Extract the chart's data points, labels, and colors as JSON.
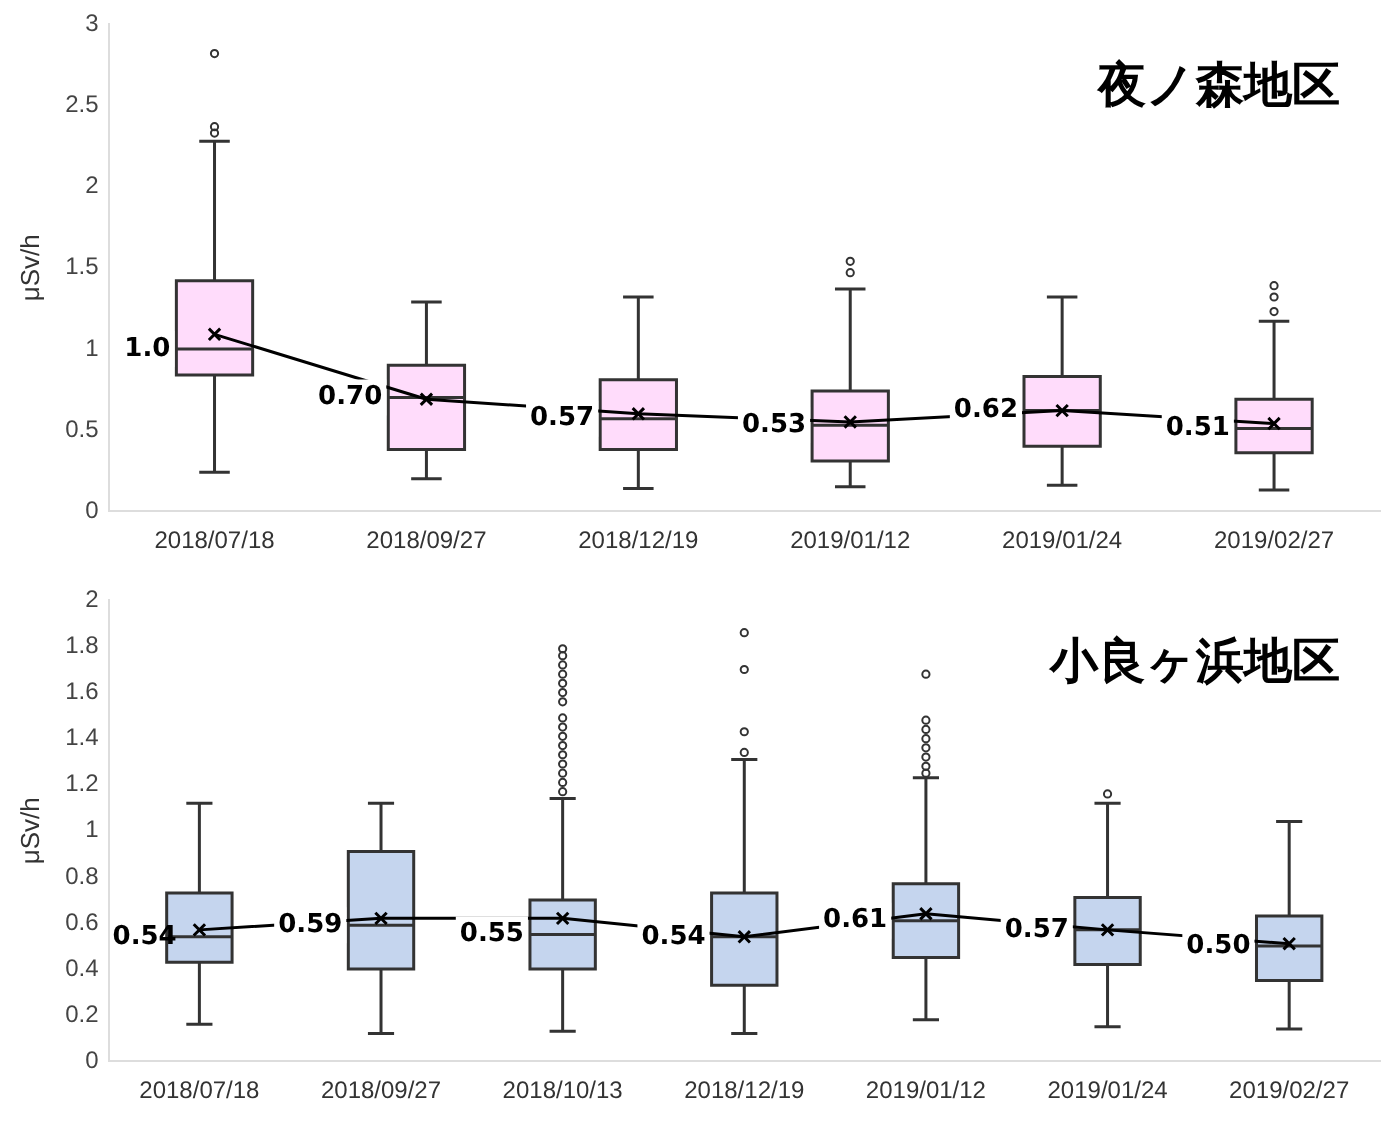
{
  "chart_data": [
    {
      "type": "box",
      "title": "夜ノ森地区",
      "ylabel": "μSv/h",
      "categories": [
        "2018/07/18",
        "2018/09/27",
        "2018/12/19",
        "2019/01/12",
        "2019/01/24",
        "2019/02/27"
      ],
      "ylim": [
        0,
        3
      ],
      "yticks": [
        0,
        0.5,
        1,
        1.5,
        2,
        2.5,
        3
      ],
      "grid": false,
      "legend": false,
      "marker": "cross",
      "series": [
        {
          "color": "#ffdcfb",
          "boxes": [
            {
              "low": 0.24,
              "q1": 0.84,
              "median": 1.0,
              "q3": 1.42,
              "high": 2.28,
              "outliers": [
                2.82,
                2.37,
                2.33
              ]
            },
            {
              "low": 0.2,
              "q1": 0.38,
              "median": 0.7,
              "q3": 0.9,
              "high": 1.29
            },
            {
              "low": 0.14,
              "q1": 0.38,
              "median": 0.57,
              "q3": 0.81,
              "high": 1.32
            },
            {
              "low": 0.15,
              "q1": 0.31,
              "median": 0.53,
              "q3": 0.74,
              "high": 1.37,
              "outliers": [
                1.54,
                1.47
              ]
            },
            {
              "low": 0.16,
              "q1": 0.4,
              "median": 0.62,
              "q3": 0.83,
              "high": 1.32
            },
            {
              "low": 0.13,
              "q1": 0.36,
              "median": 0.51,
              "q3": 0.69,
              "high": 1.17,
              "outliers": [
                1.39,
                1.32,
                1.23
              ]
            }
          ]
        },
        {
          "type": "line",
          "color": "#000000",
          "values": [
            1.09,
            0.69,
            0.6,
            0.55,
            0.62,
            0.54
          ]
        }
      ],
      "annotations": [
        {
          "text": "1.0",
          "x": "2018/07/18",
          "y": 1.0
        },
        {
          "text": "0.70",
          "x": "2018/09/27",
          "y": 0.7
        },
        {
          "text": "0.57",
          "x": "2018/12/19",
          "y": 0.57
        },
        {
          "text": "0.53",
          "x": "2019/01/12",
          "y": 0.53
        },
        {
          "text": "0.62",
          "x": "2019/01/24",
          "y": 0.62
        },
        {
          "text": "0.51",
          "x": "2019/02/27",
          "y": 0.51
        }
      ]
    },
    {
      "type": "box",
      "title": "小良ヶ浜地区",
      "ylabel": "μSv/h",
      "categories": [
        "2018/07/18",
        "2018/09/27",
        "2018/10/13",
        "2018/12/19",
        "2019/01/12",
        "2019/01/24",
        "2019/02/27"
      ],
      "ylim": [
        0,
        2
      ],
      "yticks": [
        0,
        0.2,
        0.4,
        0.6,
        0.8,
        1,
        1.2,
        1.4,
        1.6,
        1.8,
        2
      ],
      "grid": false,
      "legend": false,
      "marker": "cross",
      "series": [
        {
          "color": "#c5d5ee",
          "boxes": [
            {
              "low": 0.16,
              "q1": 0.43,
              "median": 0.54,
              "q3": 0.73,
              "high": 1.12
            },
            {
              "low": 0.12,
              "q1": 0.4,
              "median": 0.59,
              "q3": 0.91,
              "high": 1.12
            },
            {
              "low": 0.13,
              "q1": 0.4,
              "median": 0.55,
              "q3": 0.7,
              "high": 1.14,
              "outliers": [
                1.17,
                1.21,
                1.25,
                1.29,
                1.33,
                1.37,
                1.41,
                1.45,
                1.49,
                1.56,
                1.6,
                1.64,
                1.68,
                1.72,
                1.76,
                1.79
              ]
            },
            {
              "low": 0.12,
              "q1": 0.33,
              "median": 0.54,
              "q3": 0.73,
              "high": 1.31,
              "outliers": [
                1.86,
                1.7,
                1.43,
                1.34
              ]
            },
            {
              "low": 0.18,
              "q1": 0.45,
              "median": 0.61,
              "q3": 0.77,
              "high": 1.23,
              "outliers": [
                1.68,
                1.48,
                1.44,
                1.4,
                1.36,
                1.32,
                1.28,
                1.25
              ]
            },
            {
              "low": 0.15,
              "q1": 0.42,
              "median": 0.57,
              "q3": 0.71,
              "high": 1.12,
              "outliers": [
                1.16
              ]
            },
            {
              "low": 0.14,
              "q1": 0.35,
              "median": 0.5,
              "q3": 0.63,
              "high": 1.04
            }
          ]
        },
        {
          "type": "line",
          "color": "#000000",
          "values": [
            0.57,
            0.62,
            0.62,
            0.54,
            0.64,
            0.57,
            0.51
          ]
        }
      ],
      "annotations": [
        {
          "text": "0.54",
          "x": "2018/07/18",
          "y": 0.54
        },
        {
          "text": "0.59",
          "x": "2018/09/27",
          "y": 0.59
        },
        {
          "text": "0.55",
          "x": "2018/10/13",
          "y": 0.55
        },
        {
          "text": "0.54",
          "x": "2018/12/19",
          "y": 0.54
        },
        {
          "text": "0.61",
          "x": "2019/01/12",
          "y": 0.61
        },
        {
          "text": "0.57",
          "x": "2019/01/24",
          "y": 0.57
        },
        {
          "text": "0.50",
          "x": "2019/02/27",
          "y": 0.5
        }
      ]
    }
  ]
}
